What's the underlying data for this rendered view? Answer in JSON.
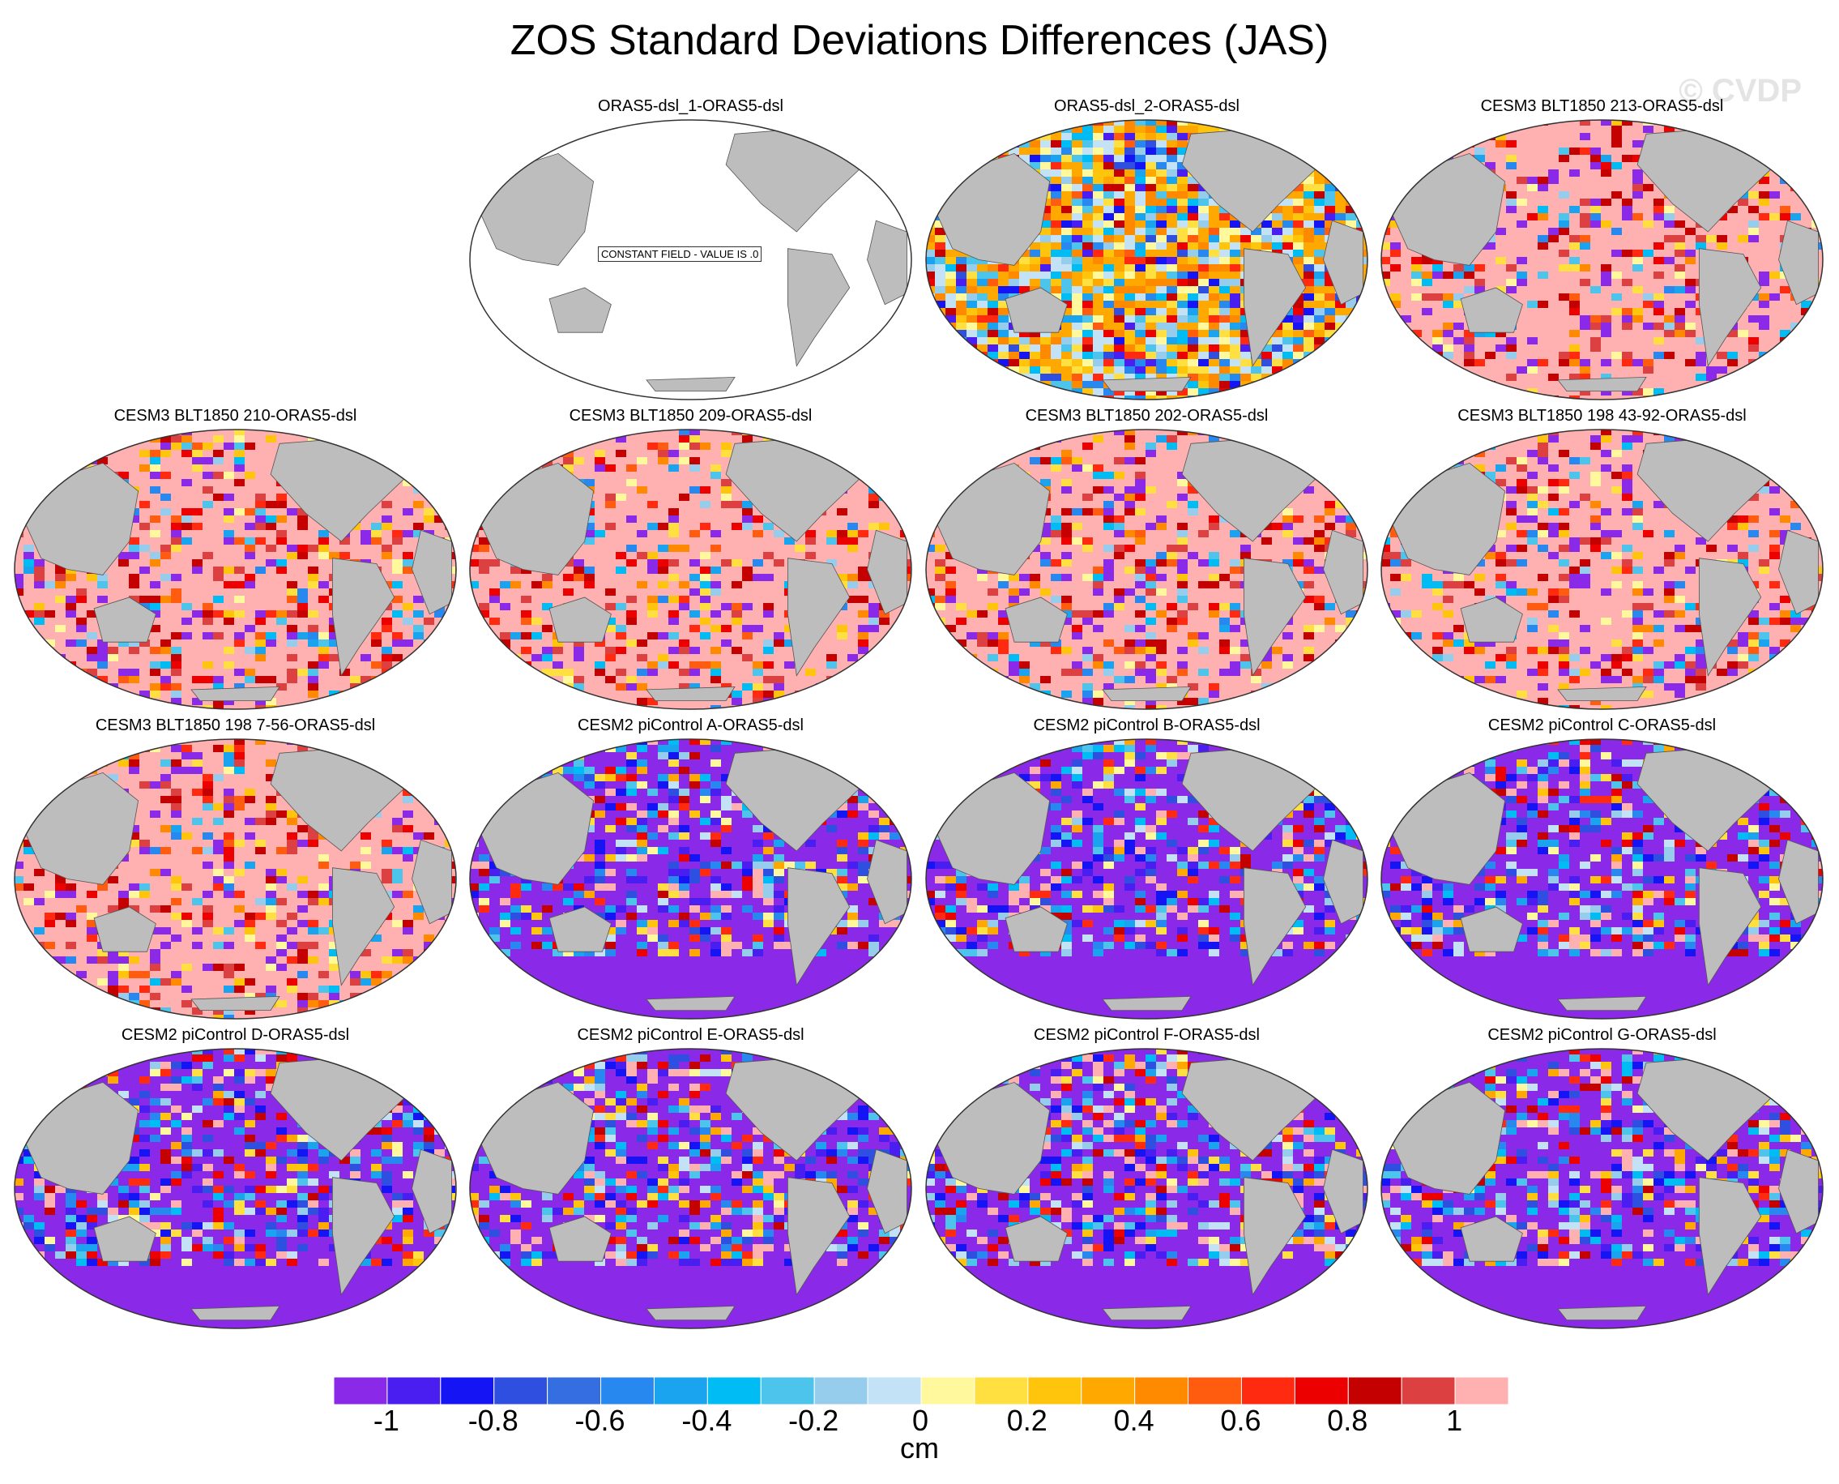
{
  "title": "ZOS Standard Deviations Differences (JAS)",
  "watermark": "© CVDP",
  "constant_field_label": "CONSTANT FIELD - VALUE IS .0",
  "colorbar": {
    "units": "cm",
    "tick_labels": [
      "-1",
      "-0.8",
      "-0.6",
      "-0.4",
      "-0.2",
      "0",
      "0.2",
      "0.4",
      "0.6",
      "0.8",
      "1"
    ],
    "colors": [
      "#8a2ae8",
      "#4a1ef0",
      "#1414f4",
      "#2f4fe0",
      "#356ee0",
      "#2788f0",
      "#1aa4f0",
      "#00bcf4",
      "#4cc4ec",
      "#96ccec",
      "#c4e2f6",
      "#fff89c",
      "#ffe040",
      "#ffc40c",
      "#ffa800",
      "#ff8a00",
      "#ff5c10",
      "#ff2a10",
      "#ec0000",
      "#c40000",
      "#dc4040",
      "#ffb0b0"
    ]
  },
  "panels": [
    {
      "title": "ORAS5-dsl_1-ORAS5-dsl",
      "pattern": "constant"
    },
    {
      "title": "ORAS5-dsl_2-ORAS5-dsl",
      "pattern": "mixed"
    },
    {
      "title": "CESM3 BLT1850 213-ORAS5-dsl",
      "pattern": "positive"
    },
    {
      "title": "CESM3 BLT1850 210-ORAS5-dsl",
      "pattern": "positive"
    },
    {
      "title": "CESM3 BLT1850 209-ORAS5-dsl",
      "pattern": "positive"
    },
    {
      "title": "CESM3 BLT1850 202-ORAS5-dsl",
      "pattern": "positive"
    },
    {
      "title": "CESM3 BLT1850 198 43-92-ORAS5-dsl",
      "pattern": "positive"
    },
    {
      "title": "CESM3 BLT1850 198 7-56-ORAS5-dsl",
      "pattern": "positive"
    },
    {
      "title": "CESM2 piControl A-ORAS5-dsl",
      "pattern": "negative"
    },
    {
      "title": "CESM2 piControl B-ORAS5-dsl",
      "pattern": "negative"
    },
    {
      "title": "CESM2 piControl C-ORAS5-dsl",
      "pattern": "negative"
    },
    {
      "title": "CESM2 piControl D-ORAS5-dsl",
      "pattern": "negative"
    },
    {
      "title": "CESM2 piControl E-ORAS5-dsl",
      "pattern": "negative"
    },
    {
      "title": "CESM2 piControl F-ORAS5-dsl",
      "pattern": "negative"
    },
    {
      "title": "CESM2 piControl G-ORAS5-dsl",
      "pattern": "negative"
    }
  ]
}
